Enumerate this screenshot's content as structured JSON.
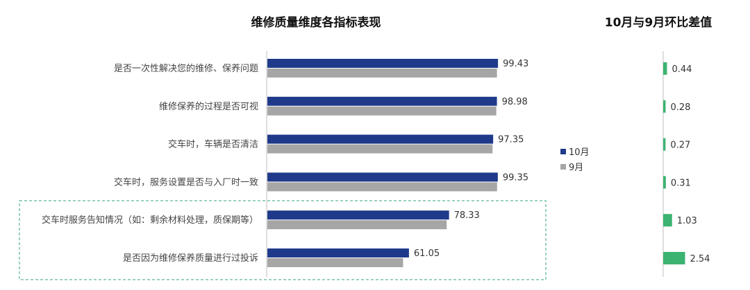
{
  "chart_data": [
    {
      "type": "bar",
      "orientation": "horizontal",
      "title": "维修质量维度各指标表现",
      "categories": [
        "是否一次性解决您的维修、保养问题",
        "维修保养的过程是否可视",
        "交车时，车辆是否清洁",
        "交车时，服务设置是否与入厂时一致",
        "交车时服务告知情况（如：剩余材料处理，质保期等）",
        "是否因为维修保养质量进行过投诉"
      ],
      "series": [
        {
          "name": "10月",
          "color": "#1f3a8a",
          "values": [
            99.43,
            98.98,
            97.35,
            99.35,
            78.33,
            61.05
          ]
        },
        {
          "name": "9月",
          "color": "#a6a6a6",
          "values": [
            98.99,
            98.7,
            97.08,
            99.04,
            77.3,
            58.51
          ]
        }
      ],
      "data_labels": [
        "99.43",
        "98.98",
        "97.35",
        "99.35",
        "78.33",
        "61.05"
      ],
      "highlighted_categories": [
        4,
        5
      ],
      "legend_position": "right",
      "grid": false
    },
    {
      "type": "bar",
      "orientation": "horizontal",
      "title": "10月与9月环比差值",
      "categories": [
        "是否一次性解决您的维修、保养问题",
        "维修保养的过程是否可视",
        "交车时，车辆是否清洁",
        "交车时，服务设置是否与入厂时一致",
        "交车时服务告知情况（如：剩余材料处理，质保期等）",
        "是否因为维修保养质量进行过投诉"
      ],
      "values": [
        0.44,
        0.28,
        0.27,
        0.31,
        1.03,
        2.54
      ],
      "data_labels": [
        "0.44",
        "0.28",
        "0.27",
        "0.31",
        "1.03",
        "2.54"
      ],
      "color": "#3cb371",
      "grid": false
    }
  ]
}
